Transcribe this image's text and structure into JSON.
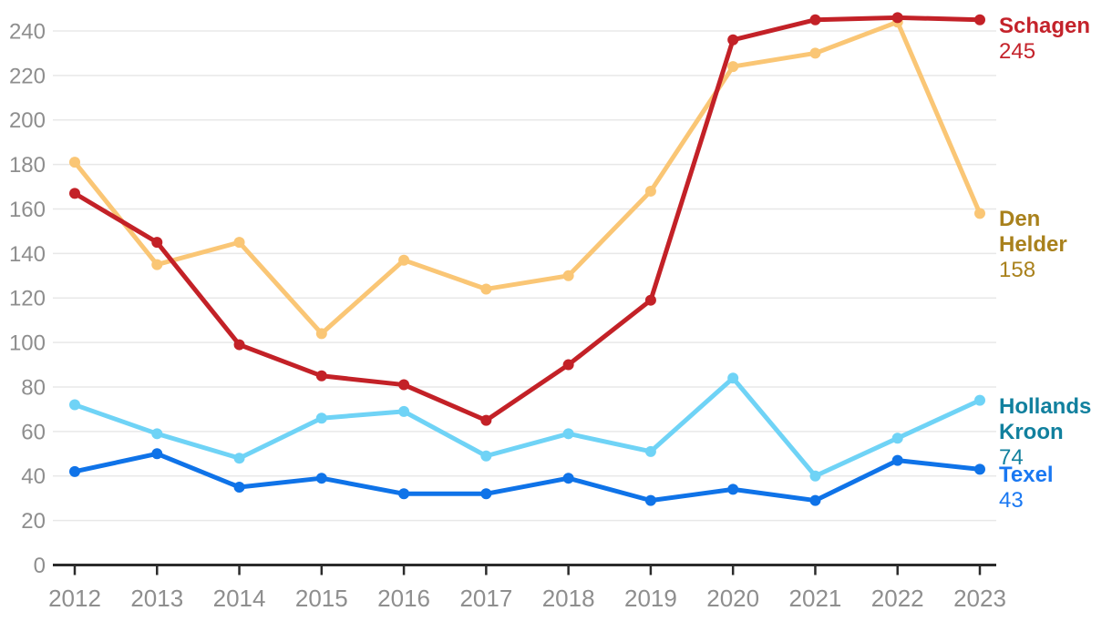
{
  "chart_data": {
    "type": "line",
    "title": "",
    "xlabel": "",
    "ylabel": "",
    "x": [
      "2012",
      "2013",
      "2014",
      "2015",
      "2016",
      "2017",
      "2018",
      "2019",
      "2020",
      "2021",
      "2022",
      "2023"
    ],
    "yticks": [
      0,
      20,
      40,
      60,
      80,
      100,
      120,
      140,
      160,
      180,
      200,
      220,
      240
    ],
    "ylim": [
      0,
      250
    ],
    "grid": true,
    "legend_position": "right-end-labels",
    "series": [
      {
        "name": "Schagen",
        "label_lines": [
          "Schagen"
        ],
        "end_value": "245",
        "values": [
          167,
          145,
          99,
          85,
          81,
          65,
          90,
          119,
          236,
          245,
          246,
          245
        ],
        "line_color": "#C32127",
        "label_color": "#C4232B"
      },
      {
        "name": "Den Helder",
        "label_lines": [
          "Den",
          "Helder"
        ],
        "end_value": "158",
        "values": [
          181,
          135,
          145,
          104,
          137,
          124,
          130,
          168,
          224,
          230,
          244,
          158
        ],
        "line_color": "#FAC675",
        "label_color": "#A9811C"
      },
      {
        "name": "Hollands Kroon",
        "label_lines": [
          "Hollands",
          "Kroon"
        ],
        "end_value": "74",
        "values": [
          72,
          59,
          48,
          66,
          69,
          49,
          59,
          51,
          84,
          40,
          57,
          74
        ],
        "line_color": "#6FD3F6",
        "label_color": "#11809E"
      },
      {
        "name": "Texel",
        "label_lines": [
          "Texel"
        ],
        "end_value": "43",
        "values": [
          42,
          50,
          35,
          39,
          32,
          32,
          39,
          29,
          34,
          29,
          47,
          43
        ],
        "line_color": "#0F73E8",
        "label_color": "#1A78F2"
      }
    ],
    "colors": {
      "grid": "#E8E8E8",
      "axis": "#2B2B2B",
      "tick_label": "#8E8E8E"
    }
  }
}
